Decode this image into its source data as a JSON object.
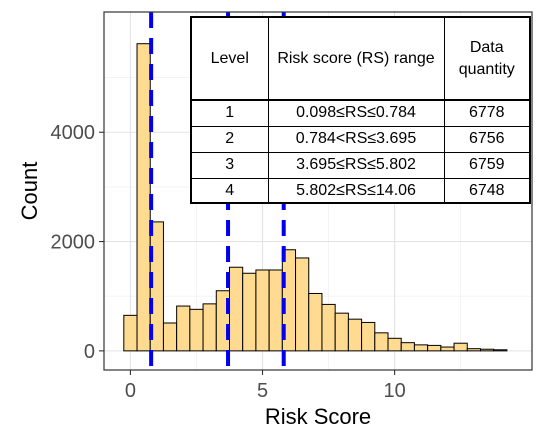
{
  "chart_data": {
    "type": "bar",
    "title": "",
    "xlabel": "Risk Score",
    "ylabel": "Count",
    "xlim": [
      -1.0,
      15.2
    ],
    "ylim": [
      -350,
      6200
    ],
    "x_ticks": [
      0,
      5,
      10
    ],
    "x_tick_labels": [
      "0",
      "5",
      "10"
    ],
    "y_ticks": [
      0,
      2000,
      4000
    ],
    "y_tick_labels": [
      "0",
      "2000",
      "4000"
    ],
    "grid": true,
    "legend": "none",
    "bar_color": "#ffdb91",
    "bar_border_color": "#000000",
    "bin_width": 0.5,
    "bin_starts": [
      -0.25,
      0.25,
      0.75,
      1.25,
      1.75,
      2.25,
      2.75,
      3.25,
      3.75,
      4.25,
      4.75,
      5.25,
      5.75,
      6.25,
      6.75,
      7.25,
      7.75,
      8.25,
      8.75,
      9.25,
      9.75,
      10.25,
      10.75,
      11.25,
      11.75,
      12.25,
      12.75,
      13.25,
      13.75
    ],
    "values": [
      650,
      5620,
      2360,
      510,
      820,
      760,
      860,
      1100,
      1530,
      1420,
      1480,
      1480,
      1850,
      1700,
      1050,
      850,
      690,
      580,
      520,
      330,
      230,
      150,
      110,
      100,
      70,
      140,
      40,
      30,
      20
    ],
    "reference_lines": [
      0.784,
      3.695,
      5.802
    ],
    "reference_line_color": "#0000ee",
    "table": {
      "headers": [
        "Level",
        "Risk score (RS) range",
        "Data quantity"
      ],
      "rows": [
        [
          "1",
          "0.098≤RS≤0.784",
          "6778"
        ],
        [
          "2",
          "0.784<RS≤3.695",
          "6756"
        ],
        [
          "3",
          "3.695≤RS≤5.802",
          "6759"
        ],
        [
          "4",
          "5.802≤RS≤14.06",
          "6748"
        ]
      ]
    }
  }
}
